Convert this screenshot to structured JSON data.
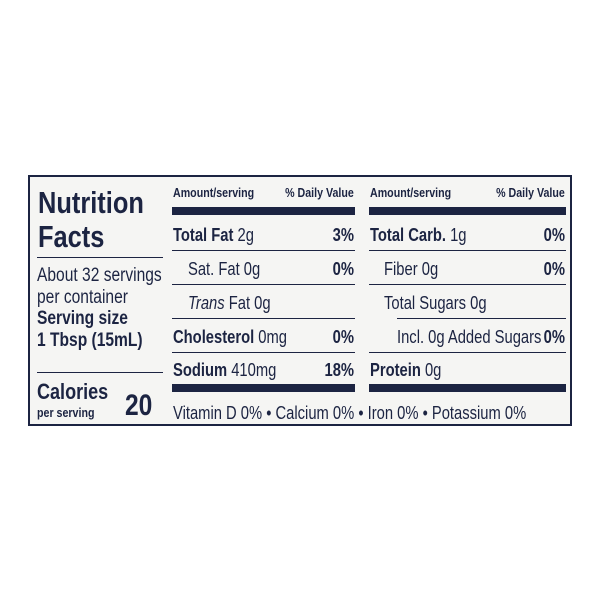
{
  "title_line1": "Nutrition",
  "title_line2": "Facts",
  "servings": {
    "line1": "About 32 servings",
    "line2": "per container"
  },
  "serving_size": {
    "label": "Serving size",
    "value": "1 Tbsp (15mL)"
  },
  "calories": {
    "label": "Calories",
    "sub": "per serving",
    "value": "20"
  },
  "header": {
    "amount": "Amount/serving",
    "dv": "% Daily Value"
  },
  "left_rows": [
    {
      "bold": "Total Fat",
      "text": " 2g",
      "dv": "3%"
    },
    {
      "bold": "",
      "text": "Sat. Fat 0g",
      "dv": "0%"
    },
    {
      "italic": "Trans",
      "text": " Fat 0g",
      "dv": ""
    },
    {
      "bold": "Cholesterol",
      "text": " 0mg",
      "dv": "0%"
    },
    {
      "bold": "Sodium",
      "text": " 410mg",
      "dv": "18%"
    }
  ],
  "right_rows": [
    {
      "bold": "Total Carb.",
      "text": " 1g",
      "dv": "0%"
    },
    {
      "bold": "",
      "text": "Fiber 0g",
      "dv": "0%"
    },
    {
      "bold": "",
      "text": "Total Sugars 0g",
      "dv": ""
    },
    {
      "bold": "",
      "text": "Incl. 0g Added Sugars",
      "dv": "0%"
    },
    {
      "bold": "Protein",
      "text": " 0g",
      "dv": ""
    }
  ],
  "vitamins": "Vitamin D 0% • Calcium 0% • Iron 0% • Potassium 0%",
  "colors": {
    "ink": "#1c2442",
    "background": "#f5f5f3"
  }
}
